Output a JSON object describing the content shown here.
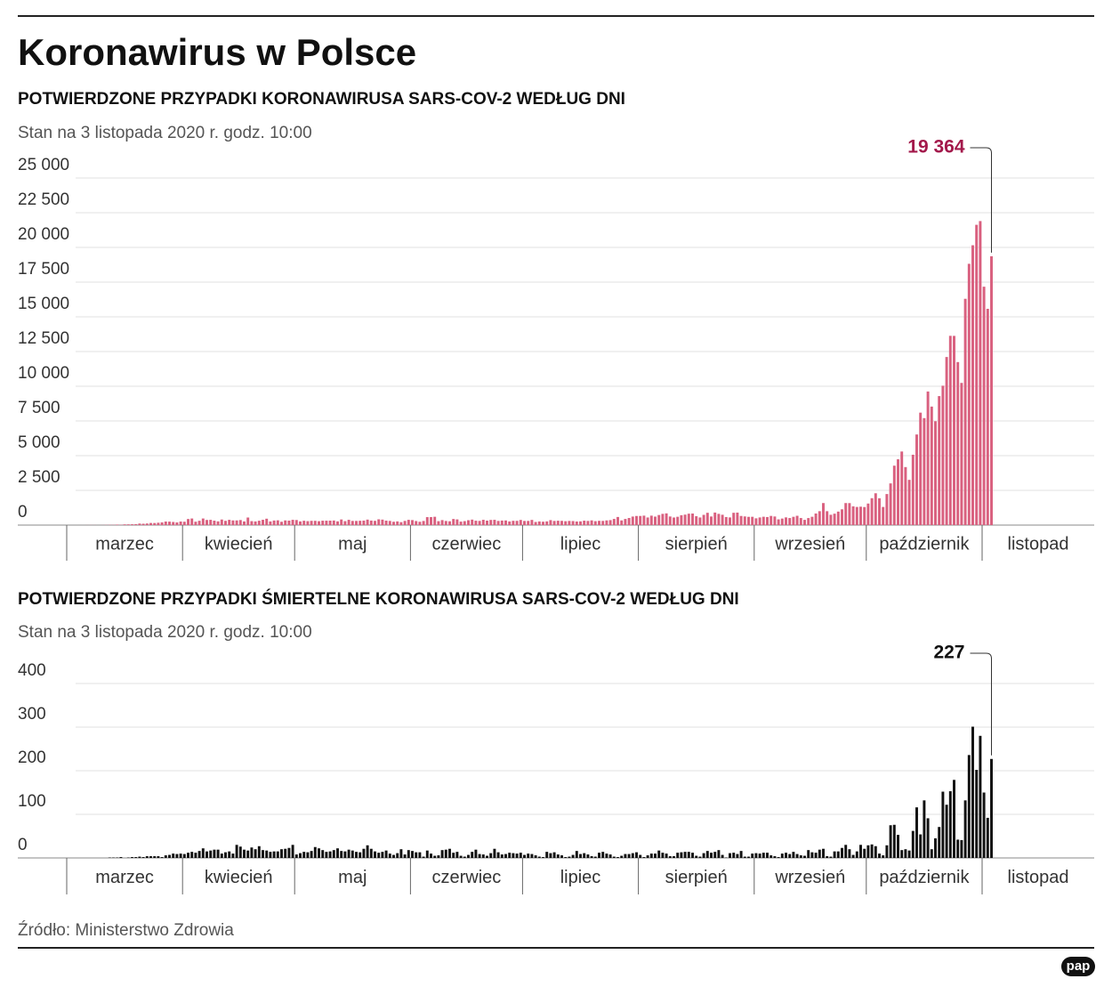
{
  "title": "Koronawirus w Polsce",
  "source": "Źródło: Ministerstwo Zdrowia",
  "logo": "pap",
  "chart_data": [
    {
      "type": "bar",
      "title": "POTWIERDZONE PRZYPADKI KORONAWIRUSA SARS-COV-2 WEDŁUG DNI",
      "subtitle": "Stan na 3 listopada 2020 r. godz. 10:00",
      "categories": [
        "marzec",
        "kwiecień",
        "maj",
        "czerwiec",
        "lipiec",
        "sierpień",
        "wrzesień",
        "październik",
        "listopad"
      ],
      "values": [
        [
          null,
          null,
          null,
          1,
          0,
          4,
          6,
          5,
          1,
          5,
          14,
          20,
          17,
          36,
          21,
          52,
          54,
          60,
          70,
          111,
          98,
          115,
          152,
          150,
          170,
          195,
          256,
          249,
          224,
          193,
          256
        ],
        [
          243,
          437,
          475,
          244,
          311,
          475,
          370,
          380,
          318,
          268,
          401,
          306,
          380,
          336,
          336,
          363,
          263,
          545,
          285,
          263,
          313,
          381,
          460,
          263,
          330,
          344,
          240,
          337,
          322,
          380
        ],
        [
          365,
          265,
          313,
          285,
          307,
          307,
          281,
          316,
          317,
          320,
          330,
          270,
          405,
          285,
          380,
          300,
          300,
          311,
          324,
          395,
          325,
          306,
          416,
          395,
          320,
          300,
          240,
          266,
          212,
          300,
          379
        ],
        [
          361,
          292,
          239,
          297,
          574,
          576,
          599,
          282,
          360,
          297,
          275,
          440,
          410,
          250,
          286,
          351,
          395,
          315,
          301,
          381,
          320,
          371,
          380,
          300,
          326,
          333,
          263,
          308,
          305,
          371
        ],
        [
          299,
          300,
          373,
          225,
          262,
          243,
          267,
          358,
          299,
          314,
          305,
          280,
          299,
          290,
          258,
          268,
          318,
          299,
          339,
          283,
          307,
          301,
          337,
          358,
          443,
          584,
          337,
          443,
          512,
          615,
          657
        ],
        [
          658,
          680,
          548,
          680,
          611,
          726,
          809,
          843,
          619,
          546,
          599,
          712,
          753,
          822,
          832,
          640,
          548,
          738,
          887,
          619,
          903,
          809,
          744,
          581,
          551,
          887,
          900,
          658,
          624,
          595,
          598
        ],
        [
          488,
          550,
          601,
          580,
          661,
          620,
          412,
          471,
          555,
          509,
          597,
          671,
          509,
          377,
          506,
          600,
          834,
          1002,
          1587,
          1001,
          744,
          823,
          972,
          1136,
          1587,
          1584,
          1350,
          1306,
          1326,
          1300
        ],
        [
          1552,
          1937,
          2292,
          1934,
          1306,
          2236,
          3003,
          4280,
          4739,
          5300,
          4178,
          3258,
          5068,
          6526,
          8099,
          7705,
          9622,
          8536,
          7482,
          9291,
          10040,
          12107,
          13632,
          13628,
          11742,
          10241,
          16300,
          18820,
          20156,
          21629,
          21897
        ],
        [
          17171,
          15578,
          19364,
          null,
          null,
          null,
          null,
          null,
          null,
          null,
          null,
          null,
          null,
          null,
          null,
          null,
          null,
          null,
          null,
          null,
          null,
          null,
          null,
          null,
          null,
          null,
          null,
          null,
          null,
          null
        ]
      ],
      "color": "#d9607f",
      "annotation": "19 364",
      "annotation_color": "#a3194b",
      "ylim": [
        0,
        25000
      ],
      "yticks": [
        0,
        {
          "value": 2500,
          "label": "2 500"
        },
        {
          "value": 5000,
          "label": "5 000"
        },
        {
          "value": 7500,
          "label": "7 500"
        },
        {
          "value": 10000,
          "label": "10 000"
        },
        {
          "value": 12500,
          "label": "12 500"
        },
        {
          "value": 15000,
          "label": "15 000"
        },
        {
          "value": 17500,
          "label": "17 500"
        },
        {
          "value": 20000,
          "label": "20 000"
        },
        {
          "value": 22500,
          "label": "22 500"
        },
        {
          "value": 25000,
          "label": "25 000"
        }
      ],
      "grid": true
    },
    {
      "type": "bar",
      "title": "POTWIERDZONE PRZYPADKI ŚMIERTELNE KORONAWIRUSA SARS-COV-2 WEDŁUG DNI",
      "subtitle": "Stan na 3 listopada 2020 r. godz. 10:00",
      "categories": [
        "marzec",
        "kwiecień",
        "maj",
        "czerwiec",
        "lipiec",
        "sierpień",
        "wrzesień",
        "październik",
        "listopad"
      ],
      "values": [
        [
          null,
          null,
          null,
          0,
          0,
          0,
          0,
          0,
          0,
          0,
          0,
          1,
          1,
          1,
          2,
          0,
          1,
          2,
          2,
          3,
          2,
          4,
          4,
          4,
          4,
          2,
          6,
          7,
          10,
          9,
          10
        ],
        [
          9,
          12,
          14,
          12,
          16,
          22,
          15,
          17,
          19,
          19,
          10,
          13,
          15,
          10,
          30,
          26,
          19,
          17,
          24,
          20,
          27,
          18,
          17,
          14,
          15,
          15,
          20,
          21,
          23,
          30
        ],
        [
          8,
          11,
          14,
          13,
          16,
          25,
          22,
          18,
          14,
          15,
          18,
          22,
          16,
          15,
          19,
          17,
          14,
          13,
          21,
          29,
          21,
          15,
          12,
          14,
          17,
          10,
          7,
          11,
          20,
          8,
          18
        ],
        [
          16,
          13,
          13,
          3,
          17,
          10,
          5,
          6,
          18,
          19,
          21,
          12,
          14,
          5,
          3,
          7,
          14,
          19,
          9,
          8,
          5,
          11,
          21,
          13,
          8,
          9,
          12,
          11,
          10,
          12
        ],
        [
          7,
          10,
          9,
          6,
          3,
          2,
          14,
          11,
          13,
          8,
          6,
          2,
          3,
          7,
          16,
          9,
          11,
          8,
          4,
          3,
          12,
          14,
          10,
          8,
          3,
          2,
          5,
          9,
          9,
          11,
          13
        ],
        [
          7,
          2,
          6,
          10,
          10,
          17,
          12,
          10,
          4,
          4,
          12,
          13,
          14,
          14,
          12,
          5,
          3,
          11,
          16,
          12,
          14,
          18,
          7,
          1,
          11,
          12,
          9,
          16,
          3,
          3,
          10
        ],
        [
          11,
          10,
          12,
          12,
          6,
          4,
          2,
          10,
          12,
          9,
          14,
          9,
          6,
          5,
          18,
          13,
          12,
          19,
          21,
          4,
          3,
          15,
          15,
          23,
          30,
          20,
          7,
          15,
          30,
          21
        ],
        [
          29,
          31,
          27,
          10,
          6,
          29,
          75,
          76,
          53,
          18,
          20,
          17,
          62,
          116,
          54,
          132,
          91,
          20,
          45,
          71,
          152,
          122,
          153,
          179,
          42,
          41,
          132,
          236,
          301,
          202,
          280
        ],
        [
          150,
          92,
          227,
          null,
          null,
          null,
          null,
          null,
          null,
          null,
          null,
          null,
          null,
          null,
          null,
          null,
          null,
          null,
          null,
          null,
          null,
          null,
          null,
          null,
          null,
          null,
          null,
          null,
          null,
          null
        ]
      ],
      "color": "#111111",
      "annotation": "227",
      "annotation_color": "#111111",
      "ylim": [
        0,
        400
      ],
      "yticks": [
        0,
        100,
        200,
        300,
        400
      ],
      "grid": true
    }
  ]
}
